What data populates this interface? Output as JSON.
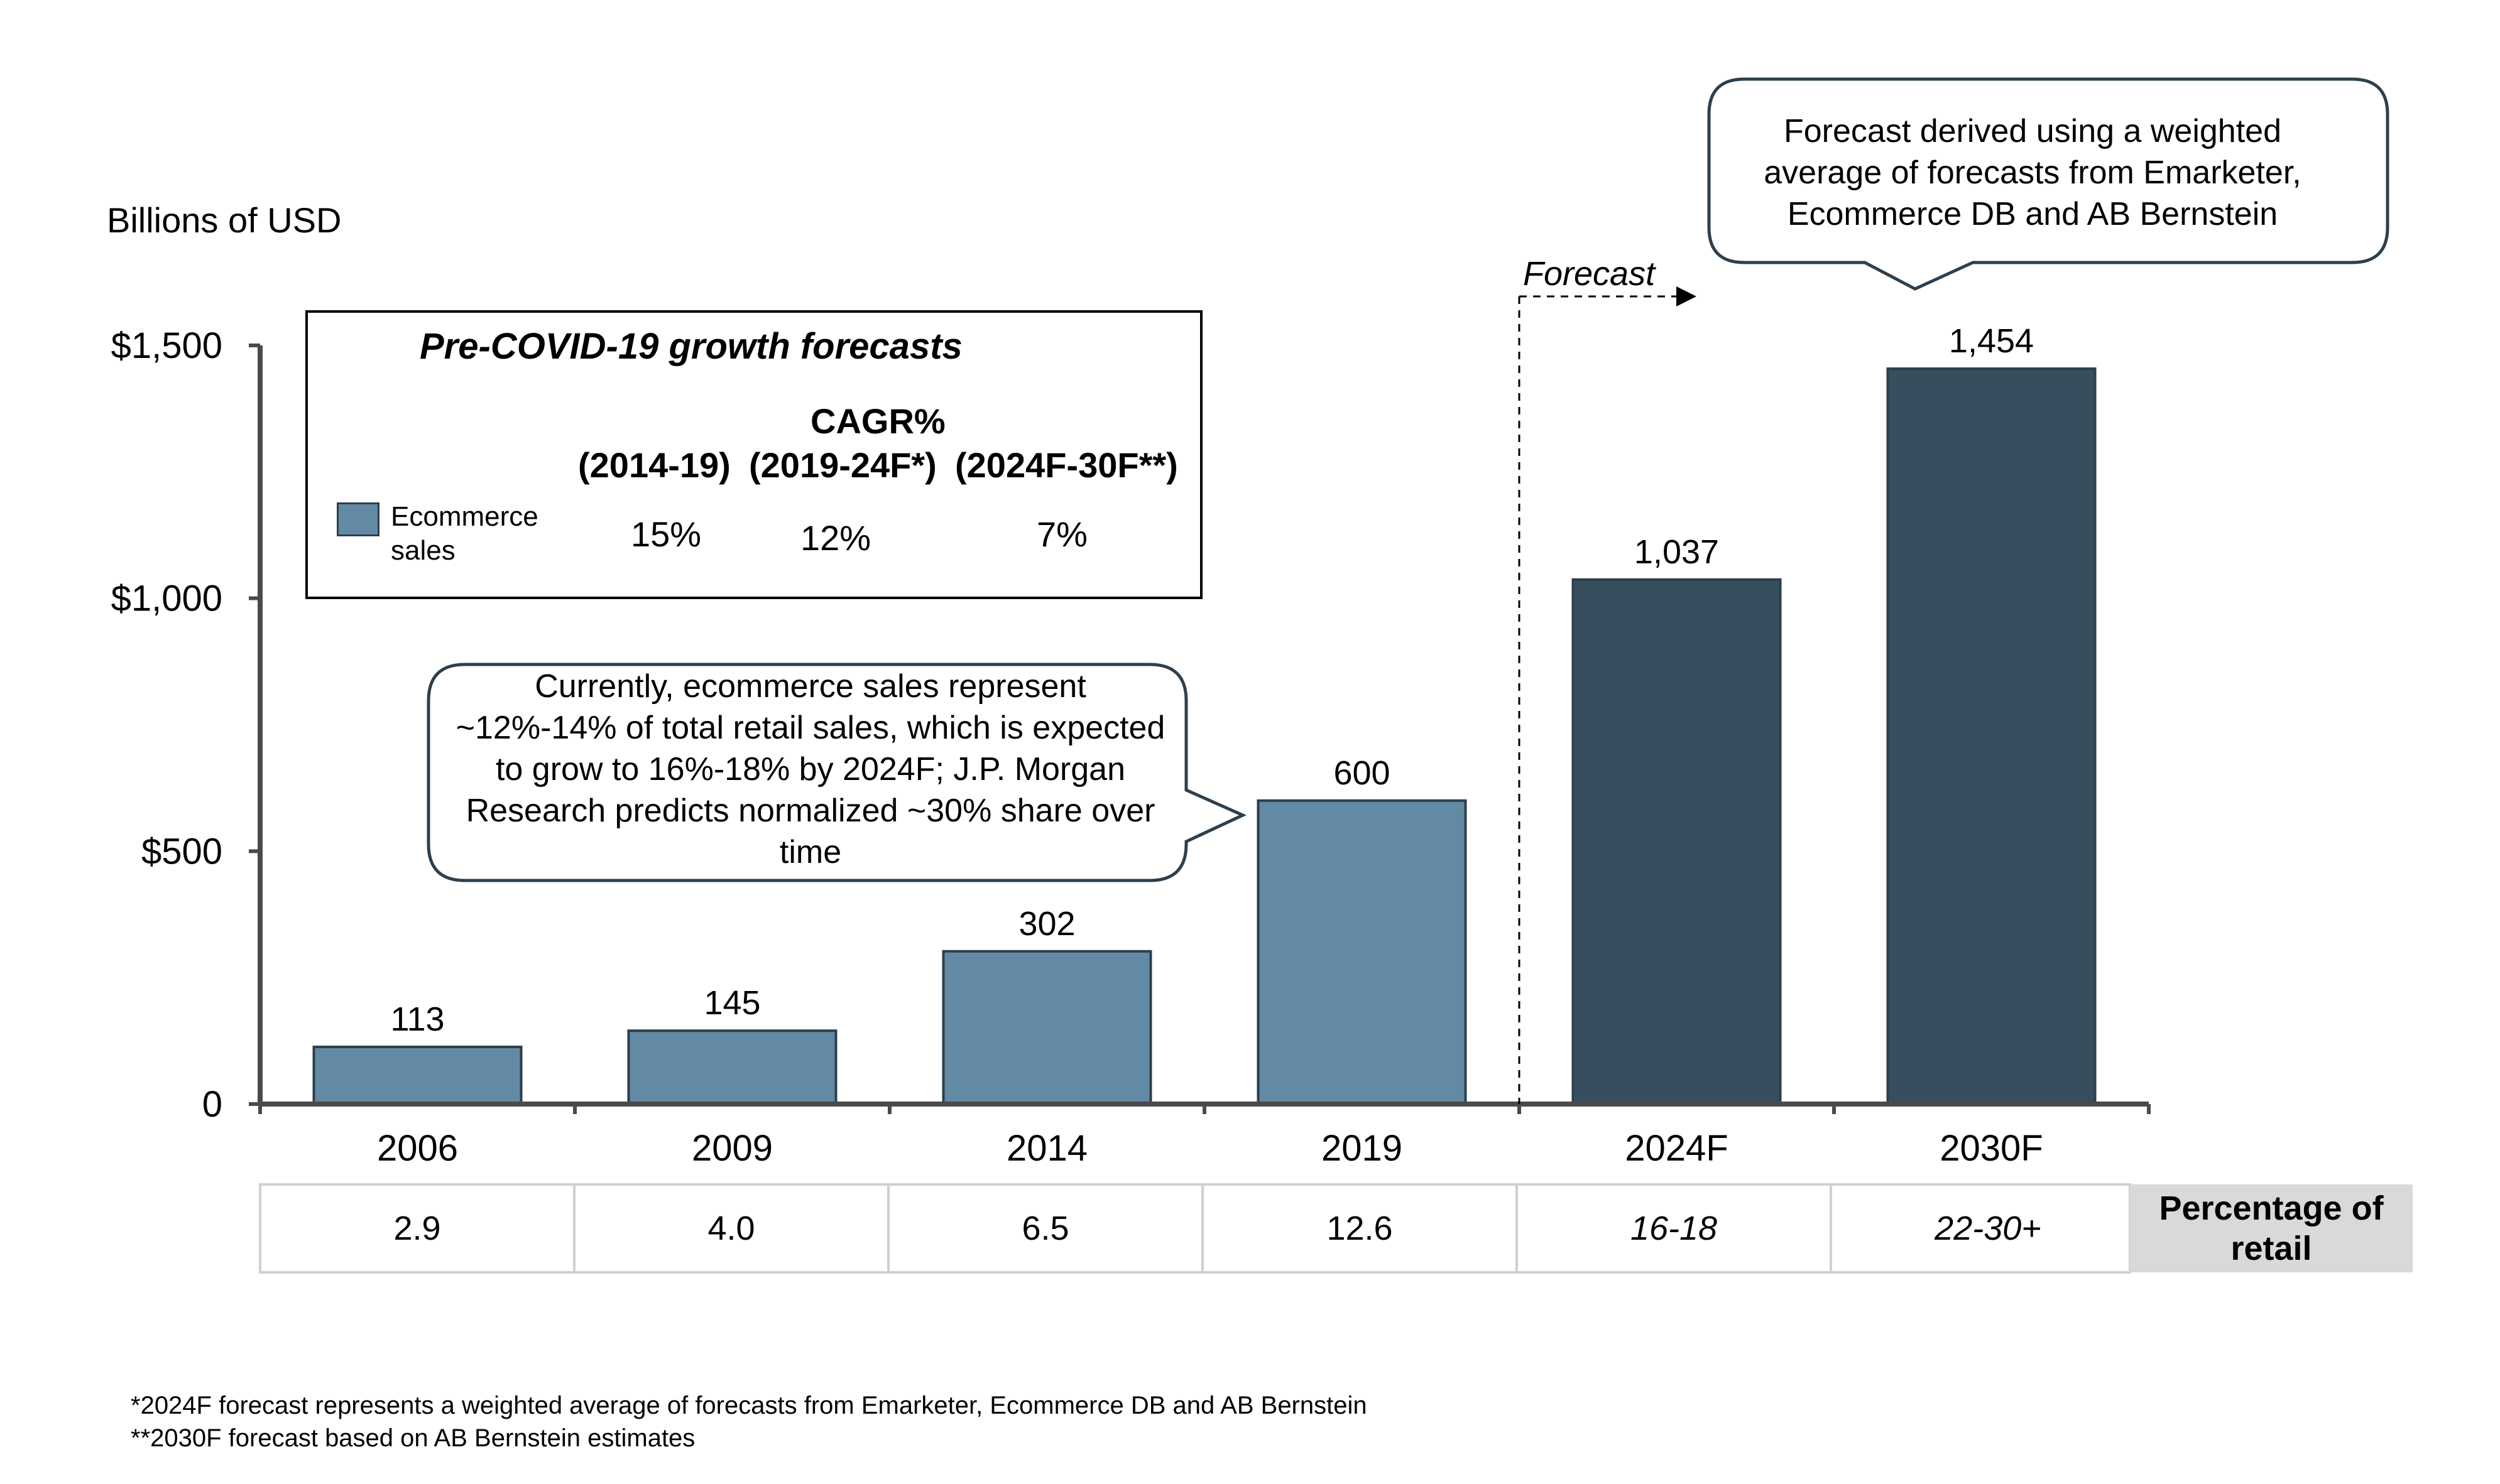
{
  "chart_data": {
    "type": "bar",
    "ylabel": "Billions of USD",
    "ylim": [
      0,
      1500
    ],
    "yticks": [
      "0",
      "$500",
      "$1,000",
      "$1,500"
    ],
    "ytick_values": [
      0,
      500,
      1000,
      1500
    ],
    "categories": [
      "2006",
      "2009",
      "2014",
      "2019",
      "2024F",
      "2030F"
    ],
    "values": [
      113,
      145,
      302,
      600,
      1037,
      1454
    ],
    "value_labels": [
      "113",
      "145",
      "302",
      "600",
      "1,037",
      "1,454"
    ],
    "colors": {
      "actual": "#628aa5",
      "forecast": "#364e5e"
    },
    "forecast_label": "Forecast",
    "percentage_of_retail": {
      "label": "Percentage of retail",
      "values": [
        "2.9",
        "4.0",
        "6.5",
        "12.6",
        "16-18",
        "22-30+"
      ]
    },
    "legend": {
      "title": "Pre-COVID-19 growth forecasts",
      "cagr_title": "CAGR%",
      "periods": [
        "(2014-19)",
        "(2019-24F*)",
        "(2024F-30F**)"
      ],
      "series_name": "Ecommerce sales",
      "cagr_values": [
        "15%",
        "12%",
        "7%"
      ]
    },
    "callouts": {
      "current_share": "Currently, ecommerce sales represent ~12%-14% of total retail sales, which is expected to grow to 16%-18% by 2024F; J.P. Morgan Research predicts normalized ~30% share over time",
      "forecast_source": "Forecast derived using a weighted average of forecasts from Emarketer, Ecommerce DB and AB Bernstein"
    }
  },
  "footnotes": [
    "*2024F forecast represents a weighted average of forecasts from Emarketer, Ecommerce DB and AB Bernstein",
    "**2030F forecast based on AB Bernstein estimates"
  ]
}
